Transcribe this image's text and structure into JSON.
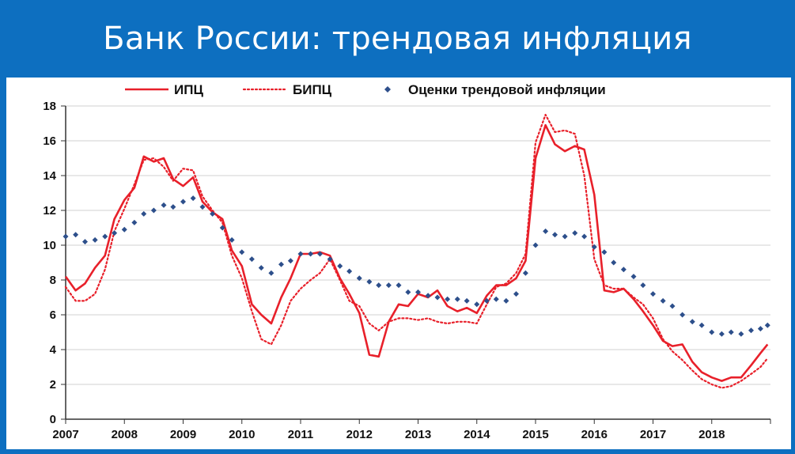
{
  "header": {
    "title": "Банк России: трендовая инфляция"
  },
  "chart_data": {
    "type": "line",
    "title": "",
    "xlabel": "",
    "ylabel": "",
    "xlim": [
      2007,
      2019
    ],
    "ylim": [
      0,
      18
    ],
    "x_ticks": [
      "2007",
      "2008",
      "2009",
      "2010",
      "2011",
      "2012",
      "2013",
      "2014",
      "2015",
      "2016",
      "2017",
      "2018"
    ],
    "y_ticks": [
      0,
      2,
      4,
      6,
      8,
      10,
      12,
      14,
      16,
      18
    ],
    "grid": "horizontal",
    "legend_position": "top",
    "series": [
      {
        "name": "ИПЦ",
        "style": "solid",
        "color": "#e8202a",
        "x": [
          2007.0,
          2007.17,
          2007.33,
          2007.5,
          2007.67,
          2007.83,
          2008.0,
          2008.17,
          2008.33,
          2008.5,
          2008.67,
          2008.83,
          2009.0,
          2009.17,
          2009.33,
          2009.5,
          2009.67,
          2009.83,
          2010.0,
          2010.17,
          2010.33,
          2010.5,
          2010.67,
          2010.83,
          2011.0,
          2011.17,
          2011.33,
          2011.5,
          2011.67,
          2011.83,
          2012.0,
          2012.17,
          2012.33,
          2012.5,
          2012.67,
          2012.83,
          2013.0,
          2013.17,
          2013.33,
          2013.5,
          2013.67,
          2013.83,
          2014.0,
          2014.17,
          2014.33,
          2014.5,
          2014.67,
          2014.83,
          2015.0,
          2015.17,
          2015.33,
          2015.5,
          2015.67,
          2015.83,
          2016.0,
          2016.17,
          2016.33,
          2016.5,
          2016.67,
          2016.83,
          2017.0,
          2017.17,
          2017.33,
          2017.5,
          2017.67,
          2017.83,
          2018.0,
          2018.17,
          2018.33,
          2018.5,
          2018.67,
          2018.83,
          2018.95
        ],
        "y": [
          8.2,
          7.4,
          7.8,
          8.7,
          9.4,
          11.5,
          12.6,
          13.3,
          15.1,
          14.8,
          15.0,
          13.8,
          13.4,
          13.9,
          12.5,
          11.9,
          11.5,
          9.7,
          8.8,
          6.6,
          6.0,
          5.5,
          7.0,
          8.1,
          9.5,
          9.5,
          9.6,
          9.4,
          8.1,
          7.2,
          6.1,
          3.7,
          3.6,
          5.6,
          6.6,
          6.5,
          7.2,
          7.0,
          7.4,
          6.5,
          6.2,
          6.4,
          6.1,
          7.1,
          7.7,
          7.7,
          8.1,
          9.1,
          15.0,
          16.9,
          15.8,
          15.4,
          15.7,
          15.5,
          12.9,
          7.4,
          7.3,
          7.5,
          6.9,
          6.2,
          5.4,
          4.5,
          4.2,
          4.3,
          3.3,
          2.7,
          2.4,
          2.2,
          2.4,
          2.4,
          3.1,
          3.8,
          4.3
        ]
      },
      {
        "name": "БИПЦ",
        "style": "dotted",
        "color": "#e8202a",
        "x": [
          2007.0,
          2007.17,
          2007.33,
          2007.5,
          2007.67,
          2007.83,
          2008.0,
          2008.17,
          2008.33,
          2008.5,
          2008.67,
          2008.83,
          2009.0,
          2009.17,
          2009.33,
          2009.5,
          2009.67,
          2009.83,
          2010.0,
          2010.17,
          2010.33,
          2010.5,
          2010.67,
          2010.83,
          2011.0,
          2011.17,
          2011.33,
          2011.5,
          2011.67,
          2011.83,
          2012.0,
          2012.17,
          2012.33,
          2012.5,
          2012.67,
          2012.83,
          2013.0,
          2013.17,
          2013.33,
          2013.5,
          2013.67,
          2013.83,
          2014.0,
          2014.17,
          2014.33,
          2014.5,
          2014.67,
          2014.83,
          2015.0,
          2015.17,
          2015.33,
          2015.5,
          2015.67,
          2015.83,
          2016.0,
          2016.17,
          2016.33,
          2016.5,
          2016.67,
          2016.83,
          2017.0,
          2017.17,
          2017.33,
          2017.5,
          2017.67,
          2017.83,
          2018.0,
          2018.17,
          2018.33,
          2018.5,
          2018.67,
          2018.83,
          2018.95
        ],
        "y": [
          7.6,
          6.8,
          6.8,
          7.2,
          8.6,
          10.8,
          12.1,
          13.5,
          14.9,
          15.0,
          14.5,
          13.7,
          14.4,
          14.3,
          12.8,
          12.0,
          11.3,
          9.4,
          8.1,
          6.2,
          4.6,
          4.3,
          5.4,
          6.8,
          7.5,
          8.0,
          8.4,
          9.2,
          8.0,
          6.8,
          6.5,
          5.5,
          5.1,
          5.6,
          5.8,
          5.8,
          5.7,
          5.8,
          5.6,
          5.5,
          5.6,
          5.6,
          5.5,
          6.6,
          7.6,
          7.8,
          8.4,
          9.5,
          15.9,
          17.5,
          16.5,
          16.6,
          16.4,
          14.0,
          9.2,
          7.7,
          7.5,
          7.5,
          7.0,
          6.6,
          5.8,
          4.6,
          3.9,
          3.4,
          2.8,
          2.3,
          2.0,
          1.8,
          1.9,
          2.2,
          2.6,
          3.0,
          3.5
        ]
      },
      {
        "name": "Оценки трендовой инфляции",
        "style": "markers",
        "color": "#2d4f8b",
        "x": [
          2007.0,
          2007.17,
          2007.33,
          2007.5,
          2007.67,
          2007.83,
          2008.0,
          2008.17,
          2008.33,
          2008.5,
          2008.67,
          2008.83,
          2009.0,
          2009.17,
          2009.33,
          2009.5,
          2009.67,
          2009.83,
          2010.0,
          2010.17,
          2010.33,
          2010.5,
          2010.67,
          2010.83,
          2011.0,
          2011.17,
          2011.33,
          2011.5,
          2011.67,
          2011.83,
          2012.0,
          2012.17,
          2012.33,
          2012.5,
          2012.67,
          2012.83,
          2013.0,
          2013.17,
          2013.33,
          2013.5,
          2013.67,
          2013.83,
          2014.0,
          2014.17,
          2014.33,
          2014.5,
          2014.67,
          2014.83,
          2015.0,
          2015.17,
          2015.33,
          2015.5,
          2015.67,
          2015.83,
          2016.0,
          2016.17,
          2016.33,
          2016.5,
          2016.67,
          2016.83,
          2017.0,
          2017.17,
          2017.33,
          2017.5,
          2017.67,
          2017.83,
          2018.0,
          2018.17,
          2018.33,
          2018.5,
          2018.67,
          2018.83,
          2018.95
        ],
        "y": [
          10.5,
          10.6,
          10.2,
          10.3,
          10.5,
          10.7,
          10.9,
          11.3,
          11.8,
          12.0,
          12.3,
          12.2,
          12.5,
          12.7,
          12.2,
          11.8,
          11.0,
          10.3,
          9.6,
          9.2,
          8.7,
          8.4,
          8.9,
          9.1,
          9.5,
          9.5,
          9.5,
          9.2,
          8.8,
          8.5,
          8.1,
          7.9,
          7.7,
          7.7,
          7.7,
          7.3,
          7.3,
          7.1,
          7.0,
          6.9,
          6.9,
          6.8,
          6.6,
          6.8,
          6.9,
          6.8,
          7.2,
          8.4,
          10.0,
          10.8,
          10.6,
          10.5,
          10.7,
          10.5,
          9.9,
          9.6,
          9.0,
          8.6,
          8.2,
          7.7,
          7.2,
          6.8,
          6.5,
          6.0,
          5.6,
          5.4,
          5.0,
          4.9,
          5.0,
          4.9,
          5.1,
          5.2,
          5.4
        ]
      }
    ]
  }
}
